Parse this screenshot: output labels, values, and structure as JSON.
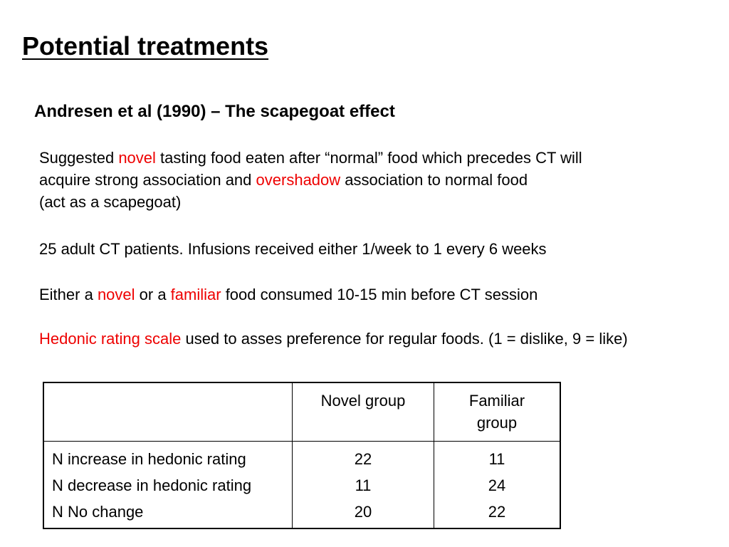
{
  "slide": {
    "title": "Potential treatments",
    "subtitle": "Andresen et al (1990) – The scapegoat effect",
    "para1": {
      "line1_a": "Suggested ",
      "line1_red": "novel",
      "line1_b": " tasting food eaten after “normal” food which precedes CT will",
      "line2_a": "acquire strong association and ",
      "line2_red": "overshadow",
      "line2_b": " association to normal food",
      "line3": "(act as a scapegoat)"
    },
    "para2": "25 adult CT patients. Infusions received either 1/week to 1 every 6 weeks",
    "para3": {
      "a": "Either a ",
      "red1": "novel",
      "b": " or a ",
      "red2": "familiar",
      "c": " food consumed 10-15 min before CT session"
    },
    "para4": {
      "red": "Hedonic rating scale",
      "rest": " used to asses preference for regular foods. (1 = dislike, 9 = like)"
    }
  },
  "table": {
    "headers": [
      "",
      "Novel group",
      "Familiar group"
    ],
    "header_familiar_line1": "Familiar",
    "header_familiar_line2": "group",
    "rows": [
      {
        "label": "N increase in hedonic rating",
        "novel": "22",
        "familiar": "11"
      },
      {
        "label": "N decrease in hedonic rating",
        "novel": "11",
        "familiar": "24"
      },
      {
        "label": "N No change",
        "novel": "20",
        "familiar": "22"
      }
    ]
  },
  "colors": {
    "highlight": "#ee0000",
    "text": "#000000",
    "background": "#ffffff"
  }
}
